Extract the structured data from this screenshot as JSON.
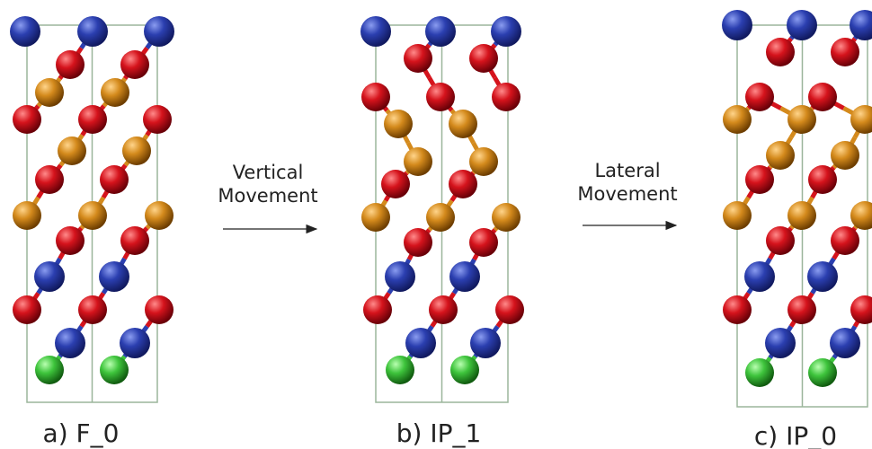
{
  "panels": [
    {
      "label": "a) F_0"
    },
    {
      "label": "b) IP_1"
    },
    {
      "label": "c) IP_0"
    }
  ],
  "transitions": [
    {
      "lines": [
        "Vertical",
        "Movement"
      ]
    },
    {
      "lines": [
        "Lateral",
        "Movement"
      ]
    }
  ]
}
